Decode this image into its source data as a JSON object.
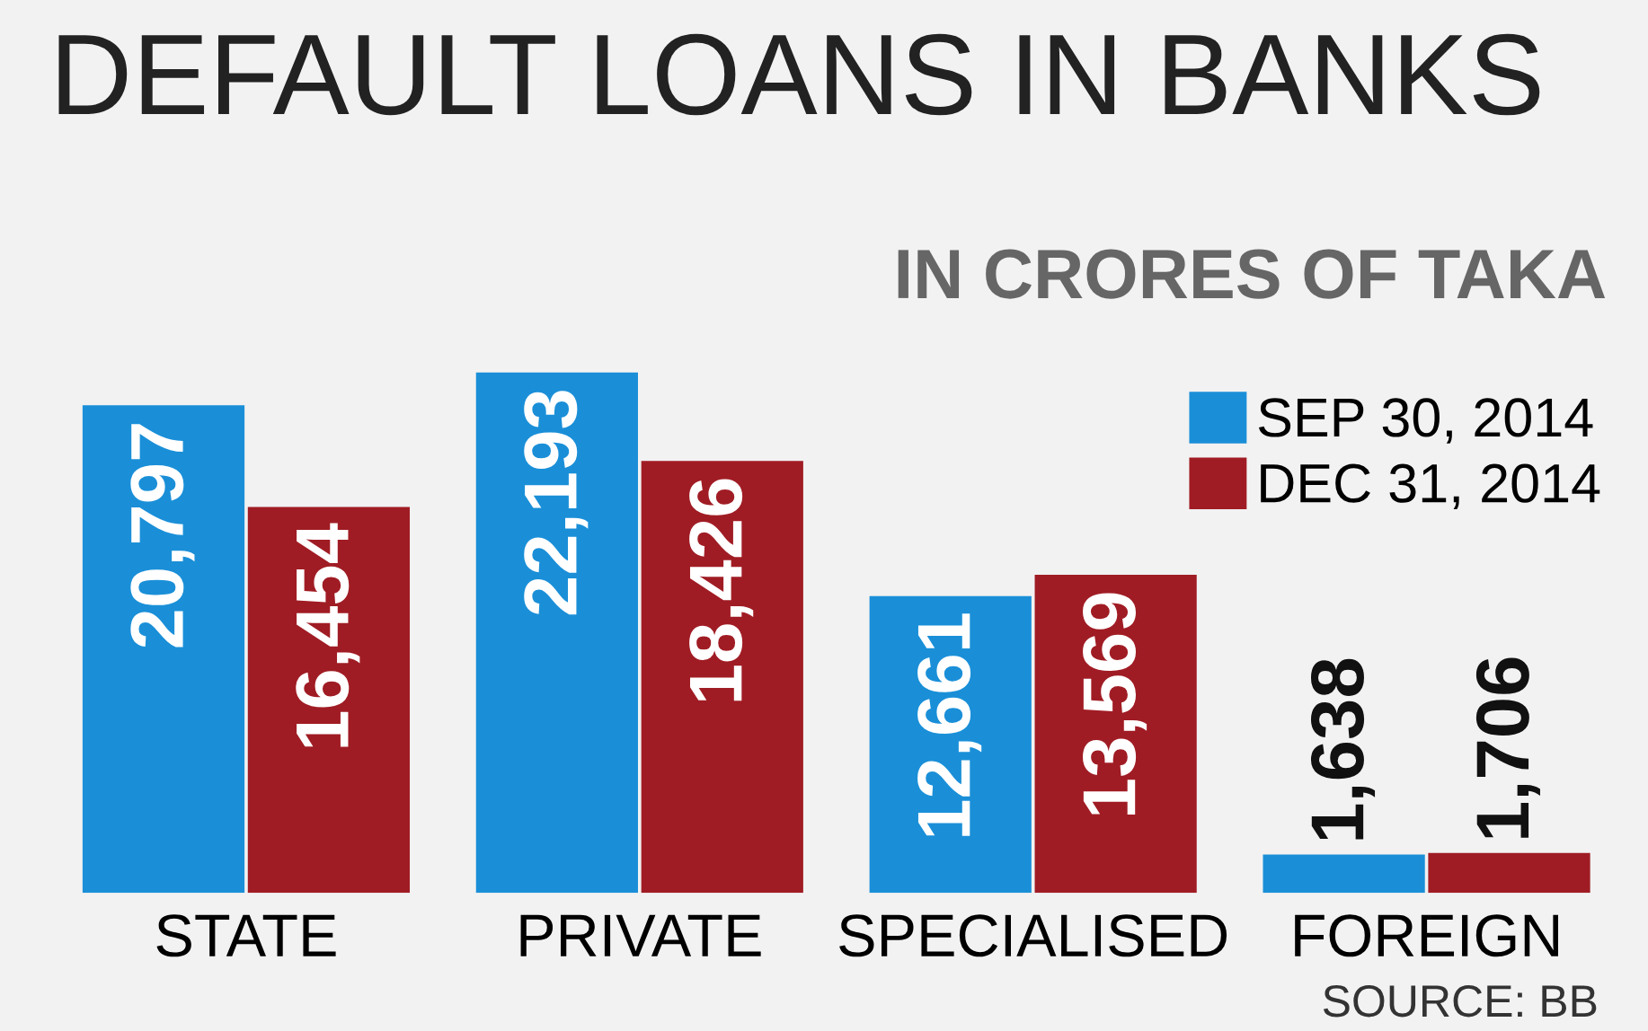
{
  "chart_data": {
    "type": "bar",
    "title": "DEFAULT LOANS IN BANKS",
    "subtitle": "IN CRORES OF TAKA",
    "categories": [
      "STATE",
      "PRIVATE",
      "SPECIALISED",
      "FOREIGN"
    ],
    "series": [
      {
        "name": "SEP 30, 2014",
        "color": "#1a8fd8",
        "values": [
          20797,
          22193,
          12661,
          1638
        ],
        "value_labels": [
          "20,797",
          "22,193",
          "12,661",
          "1,638"
        ]
      },
      {
        "name": "DEC 31, 2014",
        "color": "#a01c24",
        "values": [
          16454,
          18426,
          13569,
          1706
        ],
        "value_labels": [
          "16,454",
          "18,426",
          "13,569",
          "1,706"
        ]
      }
    ],
    "legend": "top right",
    "grid": false,
    "annotations": [
      "SOURCE: BB"
    ]
  }
}
